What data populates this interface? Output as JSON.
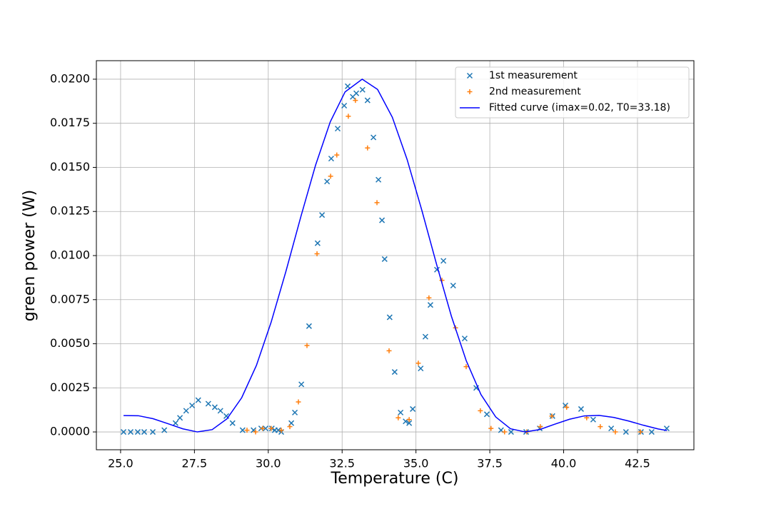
{
  "chart_data": {
    "type": "scatter",
    "xlabel": "Temperature (C)",
    "ylabel": "green power (W)",
    "xlim": [
      24.18,
      44.41
    ],
    "ylim": [
      -0.00101,
      0.02105
    ],
    "xticks": [
      {
        "value": 25,
        "label": "25.0"
      },
      {
        "value": 27.5,
        "label": "27.5"
      },
      {
        "value": 30,
        "label": "30.0"
      },
      {
        "value": 32.5,
        "label": "32.5"
      },
      {
        "value": 35,
        "label": "35.0"
      },
      {
        "value": 37.5,
        "label": "37.5"
      },
      {
        "value": 40,
        "label": "40.0"
      },
      {
        "value": 42.5,
        "label": "42.5"
      }
    ],
    "yticks": [
      {
        "value": 0,
        "label": "0.0000"
      },
      {
        "value": 0.0025,
        "label": "0.0025"
      },
      {
        "value": 0.005,
        "label": "0.0050"
      },
      {
        "value": 0.0075,
        "label": "0.0075"
      },
      {
        "value": 0.01,
        "label": "0.0100"
      },
      {
        "value": 0.0125,
        "label": "0.0125"
      },
      {
        "value": 0.015,
        "label": "0.0150"
      },
      {
        "value": 0.0175,
        "label": "0.0175"
      },
      {
        "value": 0.02,
        "label": "0.0200"
      }
    ],
    "grid": true,
    "legend": "upper right",
    "series": [
      {
        "name": "1st measurement",
        "color": "#1f77b4",
        "marker": "x",
        "x": [
          25.1,
          25.34,
          25.58,
          25.8,
          26.09,
          26.48,
          26.86,
          27.01,
          27.22,
          27.42,
          27.63,
          27.97,
          28.19,
          28.38,
          28.58,
          28.79,
          29.13,
          29.5,
          29.76,
          29.91,
          30.12,
          30.22,
          30.34,
          30.44,
          30.78,
          30.9,
          31.12,
          31.38,
          31.67,
          31.82,
          31.99,
          32.13,
          32.35,
          32.57,
          32.69,
          32.86,
          32.98,
          33.19,
          33.36,
          33.56,
          33.73,
          33.85,
          33.94,
          34.11,
          34.28,
          34.48,
          34.65,
          34.77,
          34.89,
          35.16,
          35.32,
          35.49,
          35.71,
          35.93,
          36.26,
          36.65,
          37.04,
          37.4,
          37.88,
          38.22,
          38.73,
          39.19,
          39.62,
          40.06,
          40.59,
          41.0,
          41.61,
          42.11,
          42.62,
          42.98,
          43.49
        ],
        "values": [
          0,
          0,
          0,
          0,
          0,
          0.0001,
          0.0005,
          0.0008,
          0.0012,
          0.0015,
          0.0018,
          0.0016,
          0.0014,
          0.0012,
          0.0009,
          0.0005,
          0.0001,
          0.0001,
          0.0002,
          0.0002,
          0.0002,
          0.0001,
          0.0001,
          0,
          0.0005,
          0.0011,
          0.0027,
          0.006,
          0.0107,
          0.0123,
          0.0142,
          0.0155,
          0.0172,
          0.0185,
          0.0196,
          0.019,
          0.0192,
          0.0194,
          0.0188,
          0.0167,
          0.0143,
          0.012,
          0.0098,
          0.0065,
          0.0034,
          0.0011,
          0.0006,
          0.0005,
          0.0013,
          0.0036,
          0.0054,
          0.0072,
          0.0092,
          0.0097,
          0.0083,
          0.0053,
          0.0025,
          0.001,
          0.0001,
          0,
          0,
          0.0002,
          0.0009,
          0.0015,
          0.0013,
          0.0007,
          0.0002,
          0,
          0,
          0,
          0.0002
        ]
      },
      {
        "name": "2nd measurement",
        "color": "#ff7f0e",
        "marker": "+",
        "x": [
          29.28,
          29.57,
          29.81,
          30.1,
          30.44,
          30.73,
          31.02,
          31.31,
          31.65,
          32.11,
          32.32,
          32.71,
          32.95,
          33.36,
          33.68,
          34.09,
          34.4,
          34.77,
          35.08,
          35.44,
          35.88,
          36.34,
          36.7,
          37.18,
          37.54,
          38.0,
          38.75,
          39.21,
          39.6,
          40.1,
          40.78,
          41.24,
          41.75,
          42.6
        ],
        "values": [
          0.0001,
          0,
          0.0002,
          0.0002,
          0.0001,
          0.0003,
          0.0017,
          0.0049,
          0.0101,
          0.0145,
          0.0157,
          0.0179,
          0.0188,
          0.0161,
          0.013,
          0.0046,
          0.0008,
          0.0007,
          0.0039,
          0.0076,
          0.0086,
          0.0059,
          0.0037,
          0.0012,
          0.0002,
          0,
          0,
          0.0003,
          0.0009,
          0.0014,
          0.0008,
          0.0003,
          0,
          0
        ]
      },
      {
        "name": "Fitted curve (imax=0.02, T0=33.18)",
        "color": "#0000ff",
        "marker": "line",
        "x": [
          25.1,
          25.6,
          26.1,
          26.6,
          27.1,
          27.6,
          28.1,
          28.6,
          29.1,
          29.6,
          30.1,
          30.6,
          31.1,
          31.6,
          32.1,
          32.6,
          33.18,
          33.7,
          34.2,
          34.7,
          35.2,
          35.7,
          36.2,
          36.7,
          37.2,
          37.7,
          38.2,
          38.7,
          39.2,
          39.7,
          40.2,
          40.7,
          41.2,
          41.7,
          42.2,
          42.7,
          43.2,
          43.5
        ],
        "values": [
          0.00093,
          0.00092,
          0.00075,
          0.00047,
          0.00018,
          0,
          0.00013,
          0.00074,
          0.00194,
          0.00378,
          0.00624,
          0.00912,
          0.01219,
          0.01512,
          0.01759,
          0.01928,
          0.02,
          0.01942,
          0.01784,
          0.01545,
          0.01256,
          0.00949,
          0.00656,
          0.00405,
          0.00212,
          0.00085,
          0.00018,
          0,
          0.00014,
          0.00044,
          0.00072,
          0.00091,
          0.00094,
          0.00082,
          0.00062,
          0.00038,
          0.00017,
          8e-05
        ]
      }
    ]
  }
}
